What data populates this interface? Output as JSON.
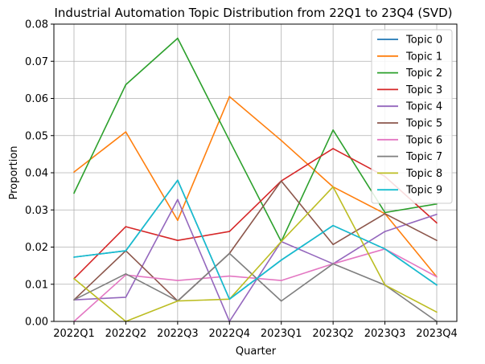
{
  "chart_data": {
    "type": "line",
    "title": "Industrial Automation Topic Distribution from 22Q1 to 23Q4 (SVD)",
    "xlabel": "Quarter",
    "ylabel": "Proportion",
    "categories": [
      "2022Q1",
      "2022Q2",
      "2022Q3",
      "2022Q4",
      "2023Q1",
      "2023Q2",
      "2023Q3",
      "2023Q4"
    ],
    "ylim": [
      0,
      0.08
    ],
    "yticks": [
      "0.00",
      "0.01",
      "0.02",
      "0.03",
      "0.04",
      "0.05",
      "0.06",
      "0.07",
      "0.08"
    ],
    "grid": true,
    "legend_position": "top-right",
    "series": [
      {
        "name": "Topic 0",
        "color": "#1f77b4",
        "values": [
          0.0173,
          0.019,
          0.038,
          0.006,
          0.0165,
          0.0258,
          0.0195,
          0.0098
        ]
      },
      {
        "name": "Topic 1",
        "color": "#ff7f0e",
        "values": [
          0.0402,
          0.051,
          0.0272,
          0.0605,
          0.0487,
          0.0362,
          0.029,
          0.012
        ]
      },
      {
        "name": "Topic 2",
        "color": "#2ca02c",
        "values": [
          0.0345,
          0.0637,
          0.0762,
          0.0487,
          0.0215,
          0.0515,
          0.0293,
          0.0316
        ]
      },
      {
        "name": "Topic 3",
        "color": "#d62728",
        "values": [
          0.0115,
          0.0255,
          0.0218,
          0.0242,
          0.0378,
          0.0465,
          0.039,
          0.0265
        ]
      },
      {
        "name": "Topic 4",
        "color": "#9467bd",
        "values": [
          0.0058,
          0.0065,
          0.0328,
          0.0,
          0.0215,
          0.0155,
          0.0242,
          0.0288
        ]
      },
      {
        "name": "Topic 5",
        "color": "#8c564b",
        "values": [
          0.0058,
          0.019,
          0.0055,
          0.0183,
          0.0378,
          0.0207,
          0.029,
          0.0218
        ]
      },
      {
        "name": "Topic 6",
        "color": "#e377c2",
        "values": [
          0.0,
          0.0125,
          0.011,
          0.0122,
          0.011,
          0.0155,
          0.0195,
          0.012
        ]
      },
      {
        "name": "Topic 7",
        "color": "#7f7f7f",
        "values": [
          0.0058,
          0.0128,
          0.0055,
          0.0183,
          0.0055,
          0.0155,
          0.0098,
          0.0
        ]
      },
      {
        "name": "Topic 8",
        "color": "#bcbd22",
        "values": [
          0.0115,
          0.0,
          0.0055,
          0.006,
          0.0215,
          0.0362,
          0.0098,
          0.0025
        ]
      },
      {
        "name": "Topic 9",
        "color": "#17becf",
        "values": [
          0.0173,
          0.019,
          0.038,
          0.006,
          0.0165,
          0.0258,
          0.0195,
          0.0098
        ]
      }
    ]
  }
}
